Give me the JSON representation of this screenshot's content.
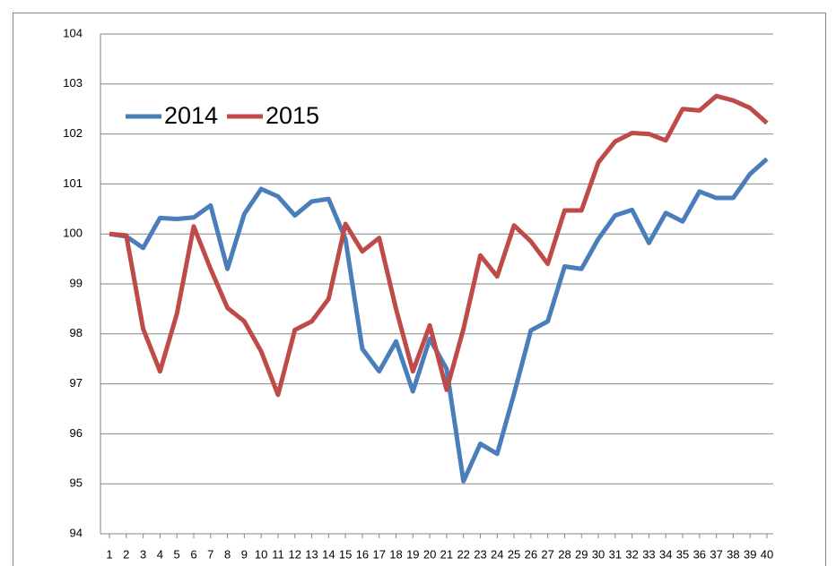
{
  "chart_data": {
    "type": "line",
    "categories": [
      1,
      2,
      3,
      4,
      5,
      6,
      7,
      8,
      9,
      10,
      11,
      12,
      13,
      14,
      15,
      16,
      17,
      18,
      19,
      20,
      21,
      22,
      23,
      24,
      25,
      26,
      27,
      28,
      29,
      30,
      31,
      32,
      33,
      34,
      35,
      36,
      37,
      38,
      39,
      40
    ],
    "series": [
      {
        "name": "2014",
        "color": "#4a7ebb",
        "values": [
          100.0,
          99.95,
          99.72,
          100.32,
          100.3,
          100.33,
          100.57,
          99.3,
          100.4,
          100.9,
          100.75,
          100.37,
          100.65,
          100.7,
          99.9,
          97.7,
          97.25,
          97.85,
          96.85,
          97.9,
          97.3,
          95.05,
          95.8,
          95.6,
          96.8,
          98.07,
          98.25,
          99.35,
          99.3,
          99.9,
          100.37,
          100.48,
          99.82,
          100.42,
          100.25,
          100.85,
          100.72,
          100.72,
          101.2,
          101.5
        ]
      },
      {
        "name": "2015",
        "color": "#be4b48",
        "values": [
          100.0,
          99.97,
          98.1,
          97.25,
          98.4,
          100.15,
          99.3,
          98.52,
          98.25,
          97.65,
          96.78,
          98.08,
          98.25,
          98.7,
          100.2,
          99.65,
          99.92,
          98.5,
          97.25,
          98.17,
          96.88,
          98.1,
          99.57,
          99.15,
          100.17,
          99.85,
          99.4,
          100.47,
          100.47,
          101.43,
          101.85,
          102.02,
          102.0,
          101.87,
          102.5,
          102.47,
          102.76,
          102.67,
          102.52,
          102.22
        ]
      }
    ],
    "ylim": [
      94,
      104
    ],
    "yticks": [
      94,
      95,
      96,
      97,
      98,
      99,
      100,
      101,
      102,
      103,
      104
    ],
    "grid": true,
    "legend": "top-left"
  }
}
